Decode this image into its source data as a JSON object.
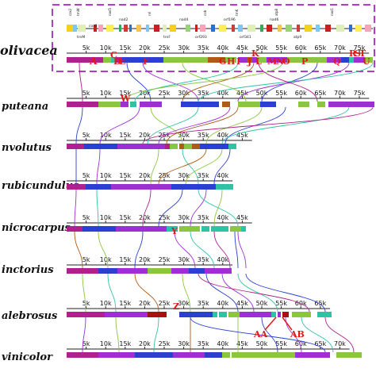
{
  "species_labels": [
    "olivacea",
    "puteana",
    "nvolutus",
    "rubicundulus",
    "nicrocarpus",
    "inctorius",
    "alebrosus",
    "vinicolor"
  ],
  "axis_ticks": {
    "olivacea": [
      "5k",
      "10k",
      "15k",
      "20k",
      "25k",
      "30k",
      "35k",
      "40k",
      "45k",
      "50k",
      "55k",
      "60k",
      "65k",
      "70k",
      "75k"
    ],
    "puteana": [
      "5k",
      "10k",
      "15k",
      "20k",
      "25k",
      "30k",
      "35k",
      "40k",
      "45k",
      "50k",
      "55k",
      "60k",
      "65k",
      "70k",
      "75k"
    ],
    "nvolutus": [
      "5k",
      "10k",
      "15k",
      "20k",
      "25k",
      "30k",
      "35k",
      "40k",
      "45k"
    ],
    "rubicundulus": [
      "5k",
      "10k",
      "15k",
      "20k",
      "25k",
      "30k",
      "35k",
      "40k"
    ],
    "nicrocarpus": [
      "5k",
      "10k",
      "15k",
      "20k",
      "25k",
      "30k",
      "35k",
      "40k",
      "45k"
    ],
    "inctorius": [
      "5k",
      "10k",
      "15k",
      "20k",
      "25k",
      "30k",
      "35k",
      "40k"
    ],
    "alebrosus": [
      "5k",
      "10k",
      "15k",
      "20k",
      "25k",
      "30k",
      "35k",
      "40k",
      "45k",
      "50k",
      "55k",
      "60k",
      "65k"
    ],
    "vinicolor": [
      "5k",
      "10k",
      "15k",
      "20k",
      "25k",
      "30k",
      "35k",
      "40k",
      "45k",
      "50k",
      "55k",
      "60k",
      "65k",
      "70k"
    ]
  },
  "block_letters": [
    "A",
    "B",
    "C",
    "D",
    "E",
    "F",
    "G",
    "H",
    "I",
    "J",
    "K",
    "L",
    "M",
    "N",
    "O",
    "P",
    "Q",
    "R",
    "S",
    "T",
    "U",
    "W",
    "Y",
    "Z",
    "AA",
    "AB"
  ],
  "gene_labels": [
    "cox3",
    "trnM",
    "nad2",
    "trnF",
    "nad4",
    "orf293",
    "orf196",
    "orf341",
    "nad6",
    "atp9"
  ],
  "colors": {
    "magenta_block": "#b0208f",
    "green_block": "#8bc63f",
    "blue_block": "#2b3fd1",
    "purple_block": "#9e2fd4",
    "teal_block": "#2fc3a5",
    "brown_block": "#b05a14",
    "darkred_block": "#a51212",
    "reference_box": "#b23cc9",
    "annotation_red": "#e01818"
  }
}
